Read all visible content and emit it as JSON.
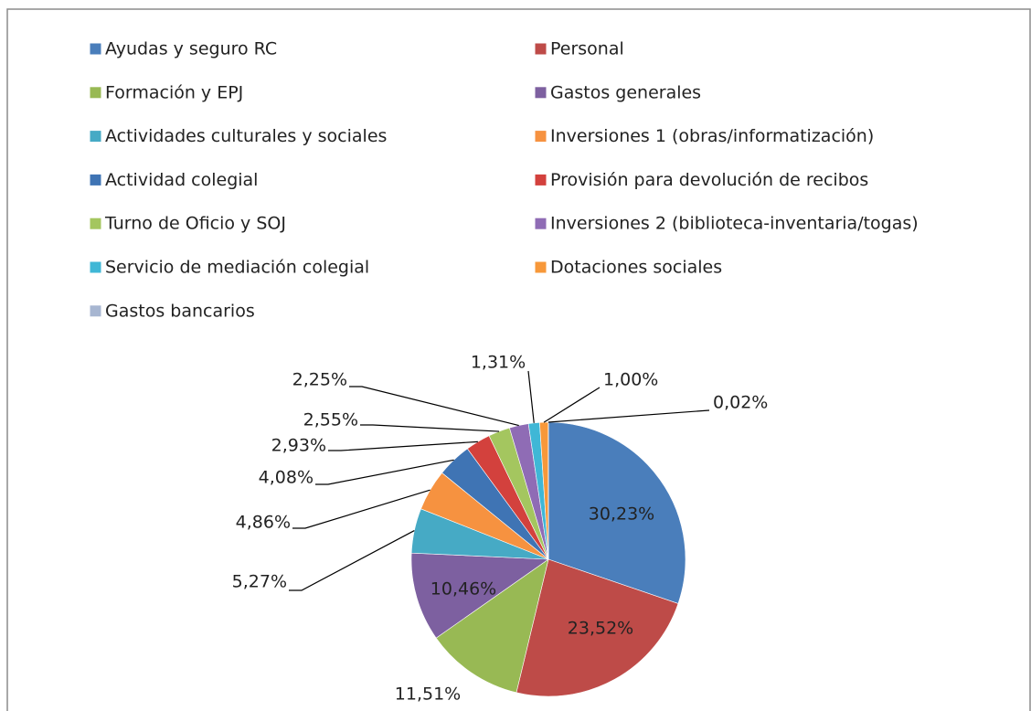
{
  "chart_data": {
    "type": "pie",
    "categories": [
      "Ayudas y seguro RC",
      "Personal",
      "Formación y EPJ",
      "Gastos generales",
      "Actividades culturales y sociales",
      "Inversiones 1 (obras/informatización)",
      "Actividad colegial",
      "Provisión para devolución de recibos",
      "Turno de Oficio y SOJ",
      "Inversiones 2 (biblioteca-inventaria/togas)",
      "Servicio de mediación colegial",
      "Dotaciones sociales",
      "Gastos bancarios"
    ],
    "values": [
      30.23,
      23.52,
      11.51,
      10.46,
      5.27,
      4.86,
      4.08,
      2.93,
      2.55,
      2.25,
      1.31,
      1.0,
      0.02
    ],
    "value_labels": [
      "30,23%",
      "23,52%",
      "11,51%",
      "10,46%",
      "5,27%",
      "4,86%",
      "4,08%",
      "2,93%",
      "2,55%",
      "2,25%",
      "1,31%",
      "1,00%",
      "0,02%"
    ],
    "colors": [
      "#4a7ebb",
      "#be4b48",
      "#98b954",
      "#7d60a0",
      "#46aac5",
      "#f69240",
      "#3f74b4",
      "#d3413d",
      "#a4c65f",
      "#8f6cb5",
      "#3fb7d6",
      "#f7983a",
      "#a7b6d1"
    ],
    "legend": "top"
  }
}
